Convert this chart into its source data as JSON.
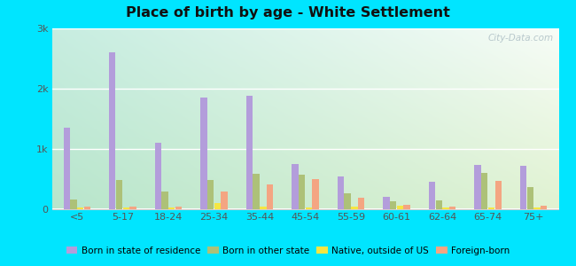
{
  "title": "Place of birth by age - White Settlement",
  "categories": [
    "<5",
    "5-17",
    "18-24",
    "25-34",
    "35-44",
    "45-54",
    "55-59",
    "60-61",
    "62-64",
    "65-74",
    "75+"
  ],
  "series": {
    "Born in state of residence": [
      1350,
      2600,
      1100,
      1850,
      1870,
      750,
      530,
      200,
      450,
      730,
      720
    ],
    "Born in other state": [
      150,
      480,
      290,
      480,
      580,
      570,
      260,
      120,
      140,
      590,
      360
    ],
    "Native, outside of US": [
      20,
      20,
      20,
      90,
      30,
      20,
      30,
      50,
      20,
      20,
      20
    ],
    "Foreign-born": [
      30,
      30,
      30,
      280,
      400,
      490,
      190,
      60,
      30,
      460,
      50
    ]
  },
  "colors": {
    "Born in state of residence": "#b39ddb",
    "Born in other state": "#adc178",
    "Native, outside of US": "#f5e642",
    "Foreign-born": "#f4a582"
  },
  "ylim": [
    0,
    3000
  ],
  "yticks": [
    0,
    1000,
    2000,
    3000
  ],
  "ytick_labels": [
    "0",
    "1k",
    "2k",
    "3k"
  ],
  "figure_bg": "#00e5ff",
  "bar_width": 0.15,
  "watermark": "City-Data.com",
  "grad_top_left": "#a8dbd6",
  "grad_bottom_right": "#d4edcc"
}
